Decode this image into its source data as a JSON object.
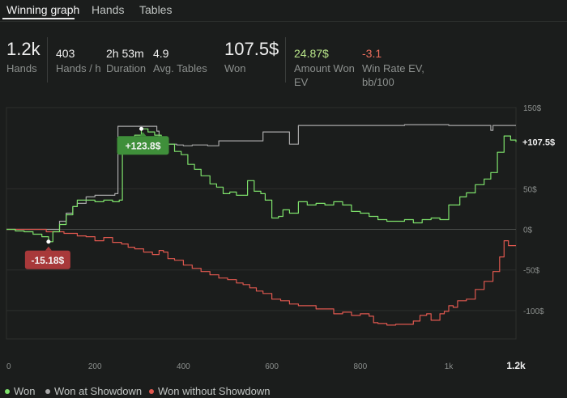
{
  "tabs": [
    {
      "label": "Winning graph"
    },
    {
      "label": "Hands"
    },
    {
      "label": "Tables"
    }
  ],
  "stats": {
    "hands": {
      "value": "1.2k",
      "label": "Hands"
    },
    "hands_per_hour": {
      "value": "403",
      "label": "Hands / h"
    },
    "duration": {
      "value": "2h 53m",
      "label": "Duration"
    },
    "avg_tables": {
      "value": "4.9",
      "label": "Avg. Tables"
    },
    "won": {
      "value": "107.5$",
      "label": "Won"
    },
    "amount_won_ev": {
      "value": "24.87$",
      "label": "Amount Won EV"
    },
    "win_rate_ev": {
      "value": "-3.1",
      "label": "Win Rate EV, bb/100"
    }
  },
  "colors": {
    "won": "#7ee26b",
    "showdown": "#a8a8a8",
    "non_showdown": "#e0584f",
    "positive_stat": "#b9e68a",
    "negative_stat": "#ef6f5e",
    "max_label_bg": "#3f8f3a",
    "min_label_bg": "#a8393a",
    "end_label": "#f0f0f0"
  },
  "legend": [
    {
      "name": "Won",
      "color": "#7ee26b"
    },
    {
      "name": "Won at Showdown",
      "color": "#a8a8a8"
    },
    {
      "name": "Won without Showdown",
      "color": "#e0584f"
    }
  ],
  "chart_data": {
    "type": "line",
    "xlim": [
      0,
      1152
    ],
    "ylim": [
      -135,
      150
    ],
    "x_ticks": [
      "0",
      "200",
      "400",
      "600",
      "800",
      "1k",
      "1.2k"
    ],
    "x_tick_values": [
      0,
      200,
      400,
      600,
      800,
      1000,
      1152
    ],
    "y_ticks": [
      "150$",
      "50$",
      "0$",
      "-50$",
      "-100$"
    ],
    "y_tick_values": [
      150,
      50,
      0,
      -50,
      -100
    ],
    "annotations": {
      "max": {
        "label": "+123.8$",
        "x": 305,
        "y": 123.8
      },
      "min": {
        "label": "-15.18$",
        "x": 95,
        "y": -15.18
      },
      "end": {
        "label": "+107.5$",
        "y": 107.5
      }
    },
    "series": [
      {
        "name": "Won",
        "color": "#7ee26b",
        "points": [
          [
            0,
            0
          ],
          [
            20,
            -2
          ],
          [
            40,
            -3
          ],
          [
            60,
            -6
          ],
          [
            80,
            -9
          ],
          [
            95,
            -15.18
          ],
          [
            105,
            -3
          ],
          [
            120,
            6
          ],
          [
            135,
            18
          ],
          [
            150,
            28
          ],
          [
            160,
            36
          ],
          [
            180,
            36
          ],
          [
            200,
            34
          ],
          [
            220,
            36
          ],
          [
            240,
            34
          ],
          [
            255,
            36
          ],
          [
            262,
            105
          ],
          [
            275,
            110
          ],
          [
            290,
            116
          ],
          [
            305,
            123.8
          ],
          [
            320,
            120
          ],
          [
            335,
            116
          ],
          [
            350,
            112
          ],
          [
            365,
            105
          ],
          [
            380,
            96
          ],
          [
            395,
            92
          ],
          [
            410,
            80
          ],
          [
            425,
            74
          ],
          [
            440,
            66
          ],
          [
            460,
            56
          ],
          [
            475,
            52
          ],
          [
            490,
            44
          ],
          [
            505,
            46
          ],
          [
            520,
            42
          ],
          [
            535,
            42
          ],
          [
            545,
            60
          ],
          [
            560,
            47
          ],
          [
            575,
            44
          ],
          [
            585,
            36
          ],
          [
            600,
            14
          ],
          [
            615,
            16
          ],
          [
            625,
            24
          ],
          [
            640,
            20
          ],
          [
            660,
            34
          ],
          [
            680,
            30
          ],
          [
            700,
            32
          ],
          [
            720,
            30
          ],
          [
            740,
            34
          ],
          [
            760,
            30
          ],
          [
            780,
            22
          ],
          [
            800,
            20
          ],
          [
            820,
            16
          ],
          [
            840,
            12
          ],
          [
            860,
            10
          ],
          [
            880,
            10
          ],
          [
            900,
            12
          ],
          [
            920,
            8
          ],
          [
            940,
            12
          ],
          [
            960,
            14
          ],
          [
            980,
            12
          ],
          [
            995,
            12
          ],
          [
            1000,
            30
          ],
          [
            1010,
            30
          ],
          [
            1025,
            40
          ],
          [
            1040,
            45
          ],
          [
            1060,
            55
          ],
          [
            1080,
            62
          ],
          [
            1095,
            70
          ],
          [
            1110,
            95
          ],
          [
            1125,
            115
          ],
          [
            1140,
            110
          ],
          [
            1152,
            107.5
          ]
        ]
      },
      {
        "name": "Won at Showdown",
        "color": "#a8a8a8",
        "points": [
          [
            0,
            0
          ],
          [
            100,
            0
          ],
          [
            120,
            10
          ],
          [
            135,
            20
          ],
          [
            150,
            28
          ],
          [
            160,
            32
          ],
          [
            180,
            40
          ],
          [
            200,
            42
          ],
          [
            220,
            42
          ],
          [
            245,
            44
          ],
          [
            250,
            44
          ],
          [
            252,
            127
          ],
          [
            270,
            127
          ],
          [
            320,
            127
          ],
          [
            340,
            121
          ],
          [
            345,
            105
          ],
          [
            360,
            105
          ],
          [
            385,
            104
          ],
          [
            400,
            103
          ],
          [
            420,
            104
          ],
          [
            440,
            104
          ],
          [
            455,
            103
          ],
          [
            475,
            103
          ],
          [
            480,
            109
          ],
          [
            500,
            109
          ],
          [
            560,
            109
          ],
          [
            580,
            120
          ],
          [
            600,
            120
          ],
          [
            620,
            120
          ],
          [
            640,
            105
          ],
          [
            650,
            105
          ],
          [
            660,
            128
          ],
          [
            700,
            128
          ],
          [
            800,
            128
          ],
          [
            900,
            129
          ],
          [
            1000,
            128
          ],
          [
            1090,
            128
          ],
          [
            1095,
            122
          ],
          [
            1100,
            128
          ],
          [
            1152,
            128
          ]
        ]
      },
      {
        "name": "Won without Showdown",
        "color": "#e0584f",
        "points": [
          [
            0,
            0
          ],
          [
            40,
            0
          ],
          [
            90,
            -3
          ],
          [
            110,
            -3
          ],
          [
            130,
            -5
          ],
          [
            160,
            -8
          ],
          [
            180,
            -9
          ],
          [
            200,
            -14
          ],
          [
            220,
            -10
          ],
          [
            240,
            -16
          ],
          [
            260,
            -18
          ],
          [
            275,
            -22
          ],
          [
            290,
            -24
          ],
          [
            310,
            -28
          ],
          [
            330,
            -31
          ],
          [
            345,
            -26
          ],
          [
            355,
            -28
          ],
          [
            365,
            -36
          ],
          [
            380,
            -38
          ],
          [
            400,
            -44
          ],
          [
            420,
            -48
          ],
          [
            440,
            -52
          ],
          [
            460,
            -56
          ],
          [
            480,
            -60
          ],
          [
            500,
            -62
          ],
          [
            520,
            -66
          ],
          [
            535,
            -68
          ],
          [
            550,
            -72
          ],
          [
            565,
            -76
          ],
          [
            580,
            -79
          ],
          [
            600,
            -86
          ],
          [
            620,
            -88
          ],
          [
            640,
            -92
          ],
          [
            660,
            -94
          ],
          [
            680,
            -94
          ],
          [
            700,
            -98
          ],
          [
            720,
            -98
          ],
          [
            740,
            -104
          ],
          [
            760,
            -102
          ],
          [
            780,
            -106
          ],
          [
            800,
            -104
          ],
          [
            820,
            -107
          ],
          [
            830,
            -115
          ],
          [
            840,
            -116
          ],
          [
            860,
            -118
          ],
          [
            880,
            -117
          ],
          [
            900,
            -117
          ],
          [
            920,
            -113
          ],
          [
            935,
            -106
          ],
          [
            950,
            -104
          ],
          [
            960,
            -112
          ],
          [
            980,
            -104
          ],
          [
            990,
            -101
          ],
          [
            1000,
            -94
          ],
          [
            1010,
            -96
          ],
          [
            1020,
            -88
          ],
          [
            1040,
            -86
          ],
          [
            1060,
            -74
          ],
          [
            1080,
            -64
          ],
          [
            1100,
            -52
          ],
          [
            1115,
            -34
          ],
          [
            1125,
            -14
          ],
          [
            1135,
            -20
          ],
          [
            1152,
            -20
          ]
        ]
      }
    ]
  }
}
